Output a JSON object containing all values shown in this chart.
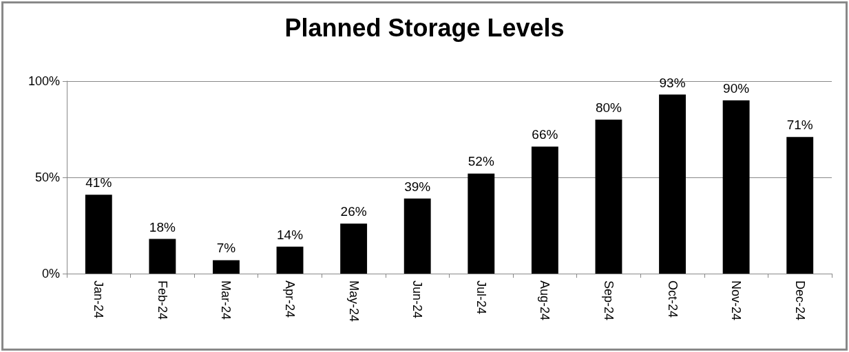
{
  "chart_data": {
    "type": "bar",
    "title": "Planned Storage Levels",
    "categories": [
      "Jan-24",
      "Feb-24",
      "Mar-24",
      "Apr-24",
      "May-24",
      "Jun-24",
      "Jul-24",
      "Aug-24",
      "Sep-24",
      "Oct-24",
      "Nov-24",
      "Dec-24"
    ],
    "values": [
      41,
      18,
      7,
      14,
      26,
      39,
      52,
      66,
      80,
      93,
      90,
      71
    ],
    "value_labels": [
      "41%",
      "18%",
      "7%",
      "14%",
      "26%",
      "39%",
      "52%",
      "66%",
      "80%",
      "93%",
      "90%",
      "71%"
    ],
    "color": "#000000",
    "ylim": [
      0,
      100
    ],
    "yticks": [
      {
        "value": 0,
        "label": "0%"
      },
      {
        "value": 50,
        "label": "50%"
      },
      {
        "value": 100,
        "label": "100%"
      }
    ],
    "grid": "y"
  }
}
